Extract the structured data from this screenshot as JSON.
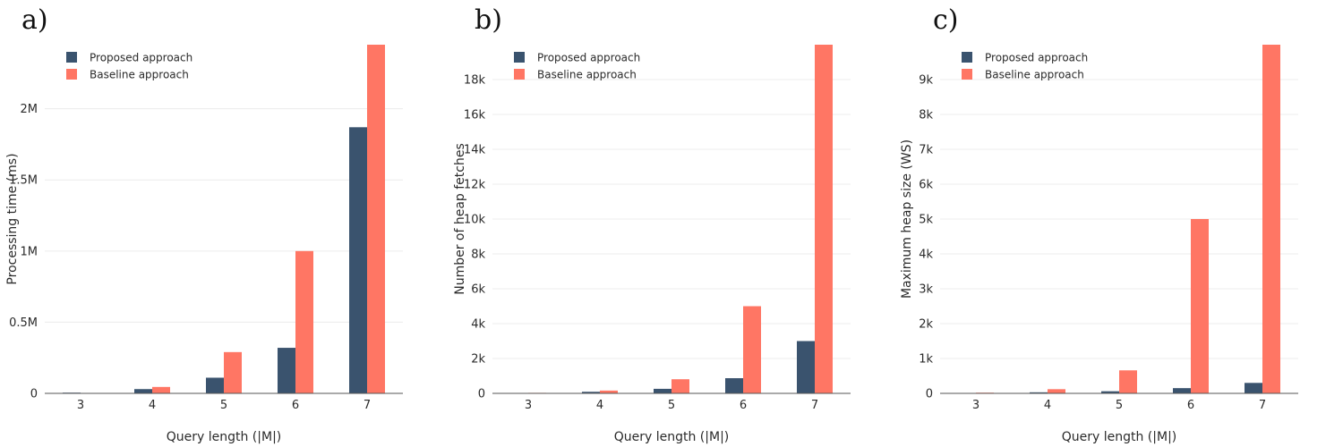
{
  "colors": {
    "proposed": "#3a536e",
    "baseline": "#ff7664"
  },
  "chart_data": [
    {
      "type": "bar",
      "panel_label": "a)",
      "categories": [
        "3",
        "4",
        "5",
        "6",
        "7"
      ],
      "series": [
        {
          "name": "Proposed approach",
          "values": [
            5000,
            30000,
            110000,
            320000,
            1870000
          ]
        },
        {
          "name": "Baseline approach",
          "values": [
            3000,
            45000,
            290000,
            1000000,
            2450000
          ]
        }
      ],
      "xlabel": "Query length (|M|)",
      "ylabel": "Processing time (ms)",
      "ylim": [
        0,
        2450000
      ],
      "yticks": [
        0,
        500000,
        1000000,
        1500000,
        2000000
      ],
      "ytick_labels": [
        "0",
        "0.5M",
        "1M",
        "1.5M",
        "2M"
      ],
      "legend": "top-left",
      "grid": true
    },
    {
      "type": "bar",
      "panel_label": "b)",
      "categories": [
        "3",
        "4",
        "5",
        "6",
        "7"
      ],
      "series": [
        {
          "name": "Proposed approach",
          "values": [
            20,
            90,
            260,
            870,
            3000
          ]
        },
        {
          "name": "Baseline approach",
          "values": [
            30,
            160,
            810,
            5000,
            20000
          ]
        }
      ],
      "xlabel": "Query length (|M|)",
      "ylabel": "Number of heap fetches",
      "ylim": [
        0,
        20000
      ],
      "yticks": [
        0,
        2000,
        4000,
        6000,
        8000,
        10000,
        12000,
        14000,
        16000,
        18000
      ],
      "ytick_labels": [
        "0",
        "2k",
        "4k",
        "6k",
        "8k",
        "10k",
        "12k",
        "14k",
        "16k",
        "18k"
      ],
      "legend": "top-left",
      "grid": true
    },
    {
      "type": "bar",
      "panel_label": "c)",
      "categories": [
        "3",
        "4",
        "5",
        "6",
        "7"
      ],
      "series": [
        {
          "name": "Proposed approach",
          "values": [
            10,
            30,
            60,
            150,
            300
          ]
        },
        {
          "name": "Baseline approach",
          "values": [
            20,
            120,
            660,
            5000,
            10000
          ]
        }
      ],
      "xlabel": "Query length (|M|)",
      "ylabel": "Maximum heap size (WS)",
      "ylim": [
        0,
        10000
      ],
      "yticks": [
        0,
        1000,
        2000,
        3000,
        4000,
        5000,
        6000,
        7000,
        8000,
        9000
      ],
      "ytick_labels": [
        "0",
        "1k",
        "2k",
        "3k",
        "4k",
        "5k",
        "6k",
        "7k",
        "8k",
        "9k"
      ],
      "legend": "top-left",
      "grid": true
    }
  ]
}
